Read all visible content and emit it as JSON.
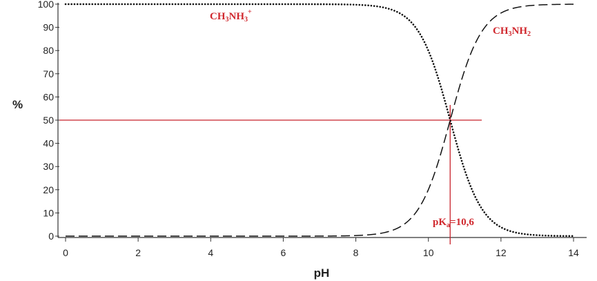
{
  "chart_data": {
    "type": "line",
    "title": "",
    "xlabel": "pH",
    "ylabel": "%",
    "xlim": [
      0,
      14
    ],
    "ylim": [
      0,
      100
    ],
    "x_ticks": [
      0,
      2,
      4,
      6,
      8,
      10,
      12,
      14
    ],
    "y_ticks": [
      0,
      10,
      20,
      30,
      40,
      50,
      60,
      70,
      80,
      90,
      100
    ],
    "pKa": 10.6,
    "reference_line_y": 50,
    "series": [
      {
        "name": "CH3NH3+",
        "label_base": "CH",
        "label_sub1": "3",
        "label_mid": "NH",
        "label_sub2": "3",
        "label_sup": "+",
        "line_style": "dotted",
        "x": [
          0,
          2,
          4,
          6,
          7,
          8,
          8.5,
          9,
          9.5,
          10,
          10.3,
          10.6,
          10.9,
          11.2,
          11.5,
          12,
          12.5,
          13,
          14
        ],
        "values": [
          100,
          100,
          100,
          100,
          100,
          99.6,
          98.8,
          96.2,
          88.8,
          79.9,
          66.6,
          50,
          33.4,
          20.1,
          11.2,
          3.8,
          1.2,
          0.4,
          0
        ]
      },
      {
        "name": "CH3NH2",
        "label_base": "CH",
        "label_sub1": "3",
        "label_mid": "NH",
        "label_sub2": "2",
        "line_style": "dashed",
        "x": [
          0,
          2,
          4,
          6,
          7,
          8,
          8.5,
          9,
          9.5,
          10,
          10.3,
          10.6,
          10.9,
          11.2,
          11.5,
          12,
          12.5,
          13,
          14
        ],
        "values": [
          0,
          0,
          0,
          0,
          0,
          0.4,
          1.2,
          3.8,
          11.2,
          20.1,
          33.4,
          50,
          66.6,
          79.9,
          88.8,
          96.2,
          98.8,
          99.6,
          100
        ]
      }
    ],
    "annotation": {
      "text_base": "pK",
      "text_sub": "a",
      "text_rest": "=10,6"
    },
    "colors": {
      "curves": "#111111",
      "reference": "#c8202a",
      "label": "#d0282e",
      "axis": "#333333"
    },
    "grid": false
  }
}
